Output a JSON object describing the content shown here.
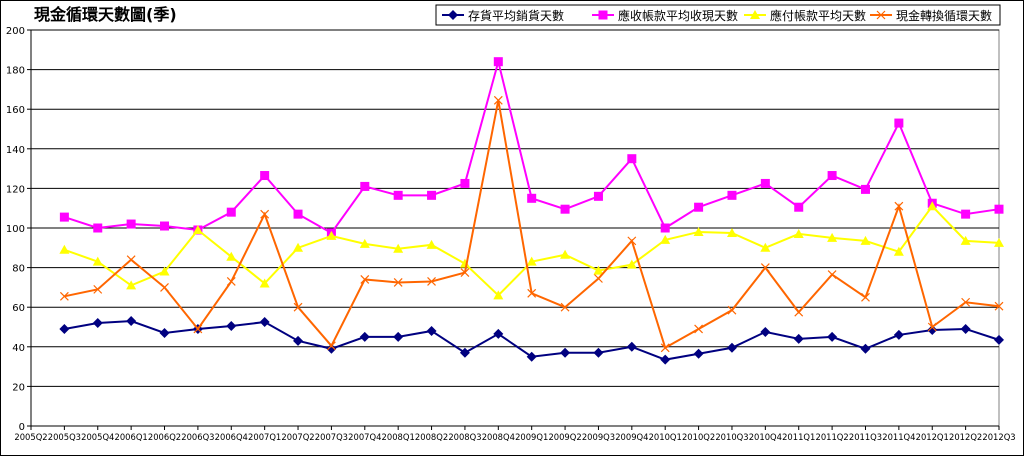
{
  "chart_data": {
    "type": "line",
    "title": "現金循環天數圖(季)",
    "categories": [
      "2005Q2",
      "2005Q3",
      "2005Q4",
      "2006Q1",
      "2006Q2",
      "2006Q3",
      "2006Q4",
      "2007Q1",
      "2007Q2",
      "2007Q3",
      "2007Q4",
      "2008Q1",
      "2008Q2",
      "2008Q3",
      "2008Q4",
      "2009Q1",
      "2009Q2",
      "2009Q3",
      "2009Q4",
      "2010Q1",
      "2010Q2",
      "2010Q3",
      "2010Q4",
      "2011Q1",
      "2011Q2",
      "2011Q3",
      "2011Q4",
      "2012Q1",
      "2012Q2",
      "2012Q3"
    ],
    "series": [
      {
        "name": "存貨平均銷貨天數",
        "color": "#000080",
        "marker": "diamond",
        "values": [
          null,
          49,
          52,
          53,
          47,
          49,
          50.5,
          52.5,
          43,
          39,
          45,
          45,
          48,
          37,
          46.5,
          35,
          37,
          37,
          40,
          33.5,
          36.5,
          39.5,
          47.5,
          44,
          45,
          39,
          46,
          48.5,
          49,
          43.5
        ]
      },
      {
        "name": "應收帳款平均收現天數",
        "color": "#ff00ff",
        "marker": "square",
        "values": [
          null,
          105.5,
          100,
          102,
          101,
          99,
          108,
          126.5,
          107,
          97.5,
          121,
          116.5,
          116.5,
          122.5,
          184,
          115,
          109.5,
          116,
          135,
          100,
          110.5,
          116.5,
          122.5,
          110.5,
          126.5,
          119.5,
          153,
          112.5,
          107,
          109.5
        ]
      },
      {
        "name": "應付帳款平均天數",
        "color": "#ffff00",
        "marker": "triangle",
        "values": [
          null,
          89,
          83,
          71,
          78,
          99,
          85.5,
          72,
          90,
          96,
          92,
          89.5,
          91.5,
          82,
          66,
          83,
          86.5,
          78.5,
          81.5,
          94,
          98,
          97.5,
          90,
          97,
          95,
          93.5,
          88,
          111,
          93.5,
          92.5
        ]
      },
      {
        "name": "現金轉換循環天數",
        "color": "#ff6600",
        "marker": "x",
        "values": [
          null,
          65.5,
          69,
          84,
          70,
          49,
          73,
          107,
          60,
          40.5,
          74,
          72.5,
          73,
          77.5,
          164.5,
          67,
          60,
          74.5,
          93.5,
          39.5,
          49,
          58.5,
          80,
          57.5,
          76.5,
          65,
          111,
          50,
          62.5,
          60.5
        ]
      }
    ],
    "ylim": [
      0,
      200
    ],
    "yticks": [
      0,
      20,
      40,
      60,
      80,
      100,
      120,
      140,
      160,
      180,
      200
    ],
    "grid": true,
    "legend": "top-right"
  }
}
